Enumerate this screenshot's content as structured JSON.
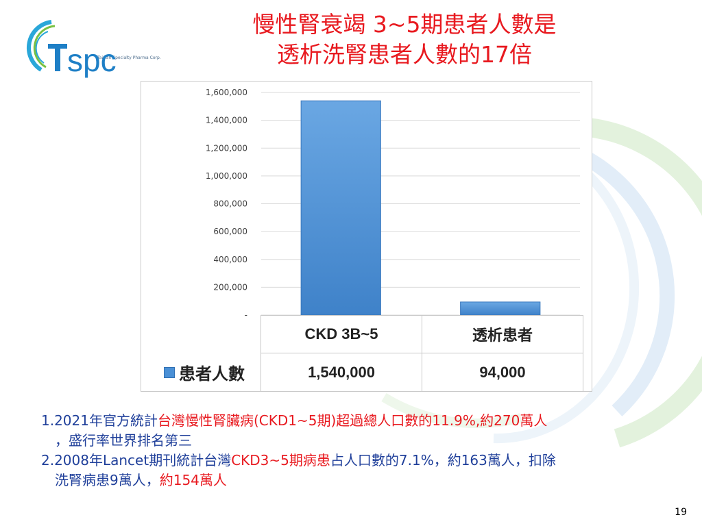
{
  "logo": {
    "text": "TSPC",
    "tagline": "Taiwan Specialty Pharma Corp."
  },
  "title": {
    "line1": "慢性腎衰竭  3~5期患者人數是",
    "line2": "透析洗腎患者人數的17倍"
  },
  "chart_data": {
    "type": "bar",
    "categories": [
      "CKD 3B~5",
      "透析患者"
    ],
    "series": [
      {
        "name": "患者人數",
        "values": [
          1540000,
          94000
        ]
      }
    ],
    "ylim": [
      0,
      1600000
    ],
    "yticks": [
      0,
      200000,
      400000,
      600000,
      800000,
      1000000,
      1200000,
      1400000,
      1600000
    ],
    "ytick_labels": [
      "-",
      "200,000",
      "400,000",
      "600,000",
      "800,000",
      "1,000,000",
      "1,200,000",
      "1,400,000",
      "1,600,000"
    ],
    "value_labels": [
      "1,540,000",
      "94,000"
    ],
    "grid": true,
    "legend": "data-table",
    "bar_color": "#4a90d6"
  },
  "notes": {
    "n1_a": "1.2021年官方統計",
    "n1_b": "台灣慢性腎臟病(CKD1~5期)超過總人口數的",
    "n1_c": "11.9%,約270萬人",
    "n1_d": "，盛行率世界排名第三",
    "n2_a": "2.2008年Lancet期刊統計台灣",
    "n2_b": "CKD3~5期病患",
    "n2_c": "占人口數的7.1%，約163萬人，扣除",
    "n2_d": "洗腎病患9萬人，",
    "n2_e": "約154萬人"
  },
  "page_number": "19"
}
